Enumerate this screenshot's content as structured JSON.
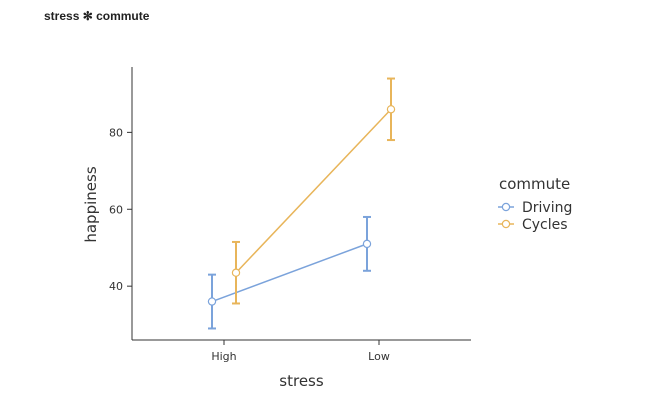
{
  "title": "stress ✻ commute",
  "chart_data": {
    "type": "line",
    "xlabel": "stress",
    "ylabel": "happiness",
    "categories": [
      "High",
      "Low"
    ],
    "yticks": [
      40,
      60,
      80
    ],
    "ylim": [
      26,
      97
    ],
    "grid": false,
    "legend": {
      "title": "commute",
      "placement": "right"
    },
    "series": [
      {
        "name": "Driving",
        "color": "#7ba3db",
        "values": [
          36,
          51
        ],
        "ci_low": [
          29,
          44
        ],
        "ci_high": [
          43,
          58
        ]
      },
      {
        "name": "Cycles",
        "color": "#e8b55a",
        "values": [
          43.5,
          86
        ],
        "ci_low": [
          35.5,
          78
        ],
        "ci_high": [
          51.5,
          94
        ]
      }
    ]
  }
}
